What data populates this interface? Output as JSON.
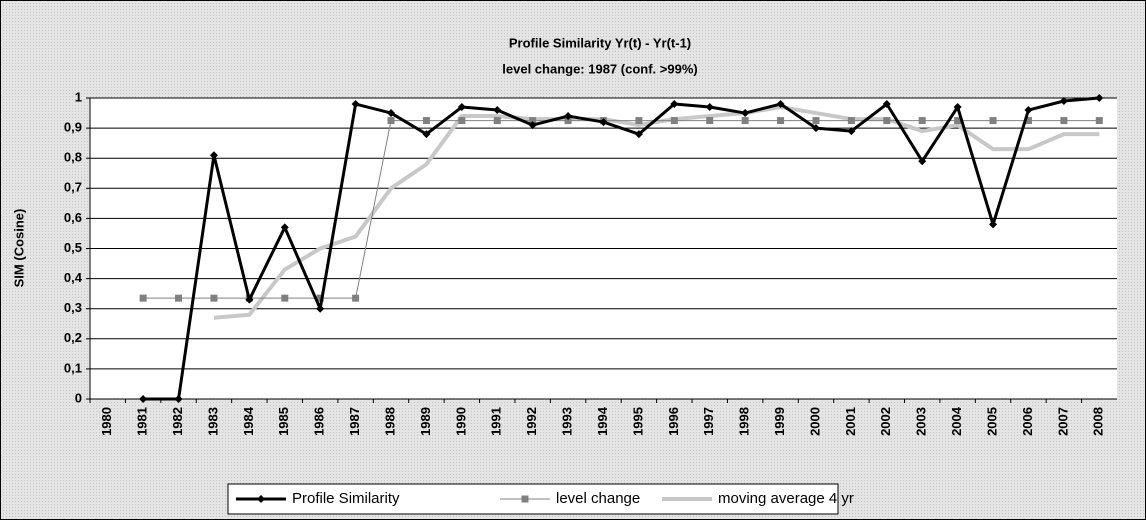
{
  "chart_data": {
    "type": "line",
    "title": "Profile Similarity Yr(t) - Yr(t-1)",
    "subtitle": "level change: 1987 (conf. >99%)",
    "y_label": "SIM (Cosine)",
    "categories": [
      "1980",
      "1981",
      "1982",
      "1983",
      "1984",
      "1985",
      "1986",
      "1987",
      "1988",
      "1989",
      "1990",
      "1991",
      "1992",
      "1993",
      "1994",
      "1995",
      "1996",
      "1997",
      "1998",
      "1999",
      "2000",
      "2001",
      "2002",
      "2003",
      "2004",
      "2005",
      "2006",
      "2007",
      "2008"
    ],
    "series": [
      {
        "name": "Profile Similarity",
        "color": "#000000",
        "marker": "diamond",
        "values": [
          null,
          0,
          0,
          0.81,
          0.33,
          0.57,
          0.3,
          0.98,
          0.95,
          0.88,
          0.97,
          0.96,
          0.91,
          0.94,
          0.92,
          0.88,
          0.98,
          0.97,
          0.95,
          0.98,
          0.9,
          0.89,
          0.98,
          0.79,
          0.97,
          0.58,
          0.96,
          0.99,
          1.0
        ]
      },
      {
        "name": "level change",
        "color": "#808080",
        "marker": "square",
        "values": [
          null,
          0.335,
          0.335,
          0.335,
          0.335,
          0.335,
          0.335,
          0.335,
          0.925,
          0.925,
          0.925,
          0.925,
          0.925,
          0.925,
          0.925,
          0.925,
          0.925,
          0.925,
          0.925,
          0.925,
          0.925,
          0.925,
          0.925,
          0.925,
          0.925,
          0.925,
          0.925,
          0.925,
          0.925
        ]
      },
      {
        "name": "moving average 4 yr",
        "color": "#c8c8c8",
        "marker": "none",
        "values": [
          null,
          null,
          null,
          0.27,
          0.28,
          0.43,
          0.5,
          0.54,
          0.7,
          0.78,
          0.94,
          0.94,
          0.93,
          0.93,
          0.93,
          0.91,
          0.93,
          0.94,
          0.95,
          0.97,
          0.95,
          0.93,
          0.93,
          0.89,
          0.91,
          0.83,
          0.83,
          0.88,
          0.88
        ]
      }
    ],
    "ylim": [
      0,
      1
    ],
    "yticks": [
      {
        "value": 0,
        "label": "0"
      },
      {
        "value": 0.1,
        "label": "0,1"
      },
      {
        "value": 0.2,
        "label": "0,2"
      },
      {
        "value": 0.3,
        "label": "0,3"
      },
      {
        "value": 0.4,
        "label": "0,4"
      },
      {
        "value": 0.5,
        "label": "0,5"
      },
      {
        "value": 0.6,
        "label": "0,6"
      },
      {
        "value": 0.7,
        "label": "0,7"
      },
      {
        "value": 0.8,
        "label": "0,8"
      },
      {
        "value": 0.9,
        "label": "0,9"
      },
      {
        "value": 1,
        "label": "1"
      }
    ],
    "grid": true,
    "legend": "bottom"
  }
}
